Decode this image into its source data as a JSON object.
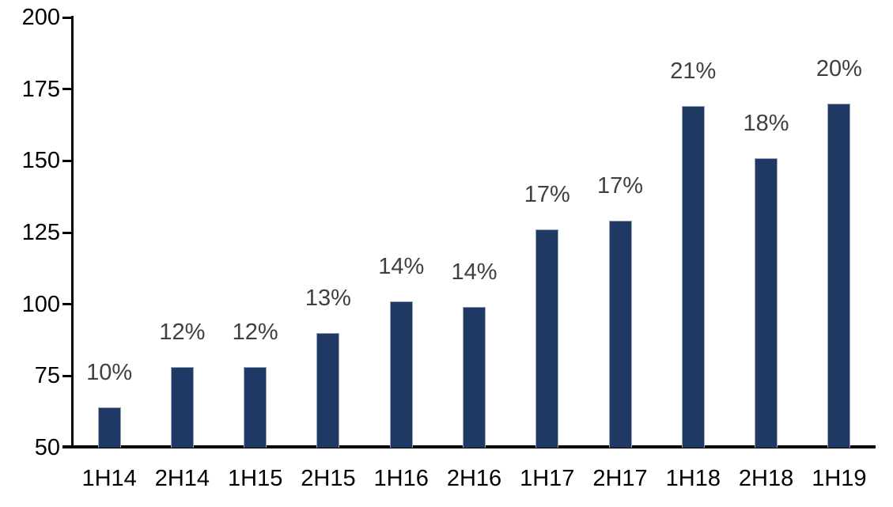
{
  "chart_data": {
    "type": "bar",
    "title": "",
    "xlabel": "",
    "ylabel": "",
    "categories": [
      "1H14",
      "2H14",
      "1H15",
      "2H15",
      "1H16",
      "2H16",
      "1H17",
      "2H17",
      "1H18",
      "2H18",
      "1H19"
    ],
    "series": [
      {
        "name": "bars",
        "values": [
          64,
          78,
          78,
          90,
          101,
          99,
          126,
          129,
          169,
          151,
          170
        ]
      }
    ],
    "bar_labels": [
      "10%",
      "12%",
      "12%",
      "13%",
      "14%",
      "14%",
      "17%",
      "17%",
      "21%",
      "18%",
      "20%"
    ],
    "ylim": [
      50,
      200
    ],
    "yticks": [
      50,
      75,
      100,
      125,
      150,
      175,
      200
    ],
    "grid": false,
    "legend": false,
    "colors": {
      "bar_fill": "#1f3864",
      "bar_border": "#9aa5b8",
      "data_label": "#404040",
      "axis": "#000000",
      "background": "#ffffff"
    }
  }
}
